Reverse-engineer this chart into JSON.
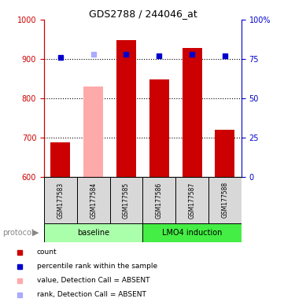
{
  "title": "GDS2788 / 244046_at",
  "samples": [
    "GSM177583",
    "GSM177584",
    "GSM177585",
    "GSM177586",
    "GSM177587",
    "GSM177588"
  ],
  "bar_values": [
    688,
    830,
    948,
    848,
    928,
    720
  ],
  "bar_colors": [
    "#cc0000",
    "#ffaaaa",
    "#cc0000",
    "#cc0000",
    "#cc0000",
    "#cc0000"
  ],
  "rank_values": [
    76,
    78,
    78,
    77,
    78,
    77
  ],
  "rank_colors": [
    "#0000cc",
    "#aaaaff",
    "#0000cc",
    "#0000cc",
    "#0000cc",
    "#0000cc"
  ],
  "ylim_left": [
    600,
    1000
  ],
  "ylim_right": [
    0,
    100
  ],
  "yticks_left": [
    600,
    700,
    800,
    900,
    1000
  ],
  "yticks_right": [
    0,
    25,
    50,
    75,
    100
  ],
  "baseline_color": "#aaffaa",
  "lmo4_color": "#44ee44",
  "protocol_label": "protocol",
  "baseline_label": "baseline",
  "lmo4_label": "LMO4 induction",
  "legend_items": [
    {
      "label": "count",
      "color": "#cc0000"
    },
    {
      "label": "percentile rank within the sample",
      "color": "#0000cc"
    },
    {
      "label": "value, Detection Call = ABSENT",
      "color": "#ffaaaa"
    },
    {
      "label": "rank, Detection Call = ABSENT",
      "color": "#aaaaff"
    }
  ],
  "left_axis_color": "#cc0000",
  "right_axis_color": "#0000cc",
  "bar_bottom": 600,
  "bar_width": 0.6
}
